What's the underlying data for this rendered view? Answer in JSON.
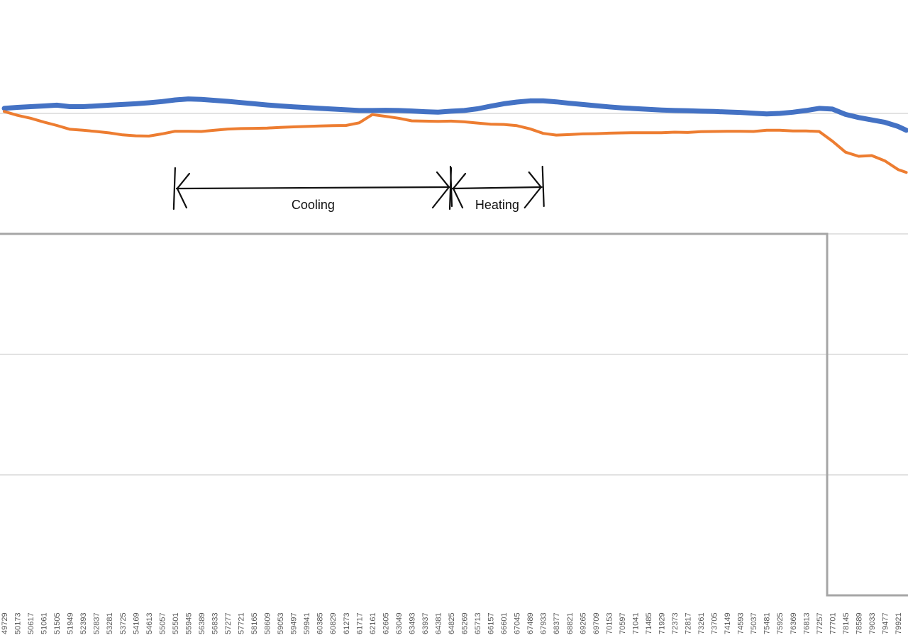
{
  "chart_data": {
    "type": "line",
    "title": "",
    "xlabel": "",
    "ylabel": "",
    "x_tick_labels": [
      "49729",
      "50173",
      "50617",
      "51061",
      "51505",
      "51949",
      "52393",
      "52837",
      "53281",
      "53725",
      "54169",
      "54613",
      "55057",
      "55501",
      "55945",
      "56389",
      "56833",
      "57277",
      "57721",
      "58165",
      "58609",
      "59053",
      "59497",
      "59941",
      "60385",
      "60829",
      "61273",
      "61717",
      "62161",
      "62605",
      "63049",
      "63493",
      "63937",
      "64381",
      "64825",
      "65269",
      "65713",
      "66157",
      "66601",
      "67045",
      "67489",
      "67933",
      "68377",
      "68821",
      "69265",
      "69709",
      "70153",
      "70597",
      "71041",
      "71485",
      "71929",
      "72373",
      "72817",
      "73261",
      "73705",
      "74149",
      "74593",
      "75037",
      "75481",
      "75925",
      "76369",
      "76813",
      "77257",
      "77701",
      "78145",
      "78589",
      "79033",
      "79477",
      "79921"
    ],
    "grid": true,
    "legend": "none",
    "series": [
      {
        "color": "#4472C4",
        "points": [
          [
            49729,
            0.958
          ],
          [
            50173,
            0.95
          ],
          [
            50617,
            0.944
          ],
          [
            51061,
            0.938
          ],
          [
            51505,
            0.932
          ],
          [
            51949,
            0.944
          ],
          [
            52393,
            0.944
          ],
          [
            52837,
            0.938
          ],
          [
            53281,
            0.932
          ],
          [
            53725,
            0.926
          ],
          [
            54169,
            0.92
          ],
          [
            54613,
            0.912
          ],
          [
            55057,
            0.902
          ],
          [
            55501,
            0.888
          ],
          [
            55945,
            0.88
          ],
          [
            56389,
            0.884
          ],
          [
            56833,
            0.892
          ],
          [
            57277,
            0.9
          ],
          [
            57721,
            0.91
          ],
          [
            58165,
            0.92
          ],
          [
            58609,
            0.93
          ],
          [
            59053,
            0.938
          ],
          [
            59497,
            0.946
          ],
          [
            59941,
            0.952
          ],
          [
            60385,
            0.958
          ],
          [
            60829,
            0.964
          ],
          [
            61273,
            0.97
          ],
          [
            61717,
            0.976
          ],
          [
            62161,
            0.976
          ],
          [
            62605,
            0.974
          ],
          [
            63049,
            0.976
          ],
          [
            63493,
            0.98
          ],
          [
            63937,
            0.986
          ],
          [
            64381,
            0.99
          ],
          [
            64825,
            0.982
          ],
          [
            65269,
            0.976
          ],
          [
            65713,
            0.962
          ],
          [
            66157,
            0.94
          ],
          [
            66601,
            0.92
          ],
          [
            67045,
            0.906
          ],
          [
            67489,
            0.896
          ],
          [
            67933,
            0.896
          ],
          [
            68377,
            0.904
          ],
          [
            68821,
            0.916
          ],
          [
            69265,
            0.926
          ],
          [
            69709,
            0.936
          ],
          [
            70153,
            0.946
          ],
          [
            70597,
            0.954
          ],
          [
            71041,
            0.96
          ],
          [
            71485,
            0.966
          ],
          [
            71929,
            0.972
          ],
          [
            72373,
            0.976
          ],
          [
            72817,
            0.978
          ],
          [
            73261,
            0.982
          ],
          [
            73705,
            0.984
          ],
          [
            74149,
            0.988
          ],
          [
            74593,
            0.992
          ],
          [
            75037,
            0.998
          ],
          [
            75481,
            1.004
          ],
          [
            75925,
            1.0
          ],
          [
            76369,
            0.99
          ],
          [
            76813,
            0.976
          ],
          [
            77257,
            0.958
          ],
          [
            77701,
            0.964
          ],
          [
            78145,
            1.008
          ],
          [
            78589,
            1.034
          ],
          [
            79033,
            1.054
          ],
          [
            79477,
            1.074
          ],
          [
            79921,
            1.108
          ],
          [
            80200,
            1.14
          ]
        ]
      },
      {
        "color": "#ED7D31",
        "points": [
          [
            49729,
            0.984
          ],
          [
            50173,
            1.016
          ],
          [
            50617,
            1.04
          ],
          [
            51061,
            1.072
          ],
          [
            51505,
            1.1
          ],
          [
            51949,
            1.132
          ],
          [
            52393,
            1.14
          ],
          [
            52837,
            1.15
          ],
          [
            53281,
            1.162
          ],
          [
            53725,
            1.178
          ],
          [
            54169,
            1.186
          ],
          [
            54613,
            1.188
          ],
          [
            55057,
            1.17
          ],
          [
            55501,
            1.148
          ],
          [
            55945,
            1.148
          ],
          [
            56389,
            1.15
          ],
          [
            56833,
            1.14
          ],
          [
            57277,
            1.13
          ],
          [
            57721,
            1.126
          ],
          [
            58165,
            1.124
          ],
          [
            58609,
            1.122
          ],
          [
            59053,
            1.116
          ],
          [
            59497,
            1.112
          ],
          [
            59941,
            1.108
          ],
          [
            60385,
            1.104
          ],
          [
            60829,
            1.102
          ],
          [
            61273,
            1.1
          ],
          [
            61717,
            1.078
          ],
          [
            62161,
            1.01
          ],
          [
            62605,
            1.024
          ],
          [
            63049,
            1.04
          ],
          [
            63493,
            1.062
          ],
          [
            63937,
            1.064
          ],
          [
            64381,
            1.066
          ],
          [
            64825,
            1.064
          ],
          [
            65269,
            1.07
          ],
          [
            65713,
            1.08
          ],
          [
            66157,
            1.09
          ],
          [
            66601,
            1.092
          ],
          [
            67045,
            1.102
          ],
          [
            67489,
            1.128
          ],
          [
            67933,
            1.166
          ],
          [
            68377,
            1.18
          ],
          [
            68821,
            1.176
          ],
          [
            69265,
            1.17
          ],
          [
            69709,
            1.168
          ],
          [
            70153,
            1.164
          ],
          [
            70597,
            1.162
          ],
          [
            71041,
            1.16
          ],
          [
            71485,
            1.16
          ],
          [
            71929,
            1.16
          ],
          [
            72373,
            1.156
          ],
          [
            72817,
            1.158
          ],
          [
            73261,
            1.152
          ],
          [
            73705,
            1.15
          ],
          [
            74149,
            1.148
          ],
          [
            74593,
            1.148
          ],
          [
            75037,
            1.15
          ],
          [
            75481,
            1.14
          ],
          [
            75925,
            1.14
          ],
          [
            76369,
            1.146
          ],
          [
            76813,
            1.146
          ],
          [
            77257,
            1.15
          ],
          [
            77701,
            1.23
          ],
          [
            78145,
            1.322
          ],
          [
            78589,
            1.356
          ],
          [
            79033,
            1.35
          ],
          [
            79477,
            1.394
          ],
          [
            79921,
            1.466
          ],
          [
            80200,
            1.49
          ]
        ]
      }
    ],
    "annotations": [
      {
        "label": "Cooling",
        "from": 55501,
        "to": 64825
      },
      {
        "label": "Heating",
        "from": 64825,
        "to": 67933
      }
    ]
  }
}
